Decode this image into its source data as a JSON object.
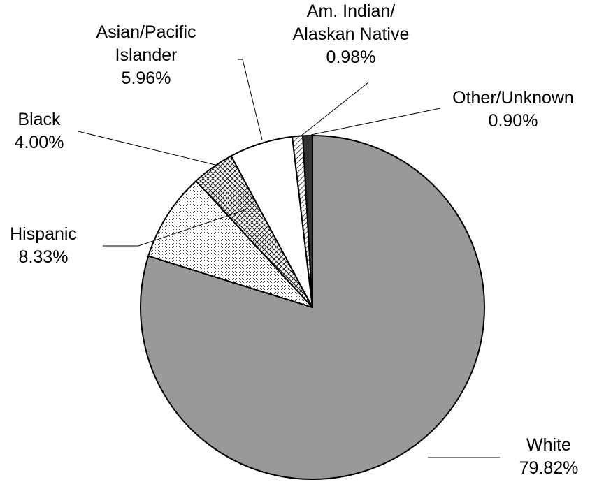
{
  "chart_data": {
    "type": "pie",
    "title": "",
    "start_angle_deg": 0,
    "direction": "clockwise",
    "slices": [
      {
        "label": [
          "White"
        ],
        "value_text": "79.82%",
        "value": 79.82,
        "fill": "gray",
        "color": "#999999"
      },
      {
        "label": [
          "Hispanic"
        ],
        "value_text": "8.33%",
        "value": 8.33,
        "fill": "dots",
        "color": "#ffffff"
      },
      {
        "label": [
          "Black"
        ],
        "value_text": "4.00%",
        "value": 4.0,
        "fill": "crosshatch",
        "color": "#ffffff"
      },
      {
        "label": [
          "Asian/Pacific",
          "Islander"
        ],
        "value_text": "5.96%",
        "value": 5.96,
        "fill": "solid",
        "color": "#ffffff"
      },
      {
        "label": [
          "Am. Indian/",
          "Alaskan Native"
        ],
        "value_text": "0.98%",
        "value": 0.98,
        "fill": "diagonal",
        "color": "#ffffff"
      },
      {
        "label": [
          "Other/Unknown"
        ],
        "value_text": "0.90%",
        "value": 0.9,
        "fill": "solid",
        "color": "#333333"
      }
    ]
  }
}
